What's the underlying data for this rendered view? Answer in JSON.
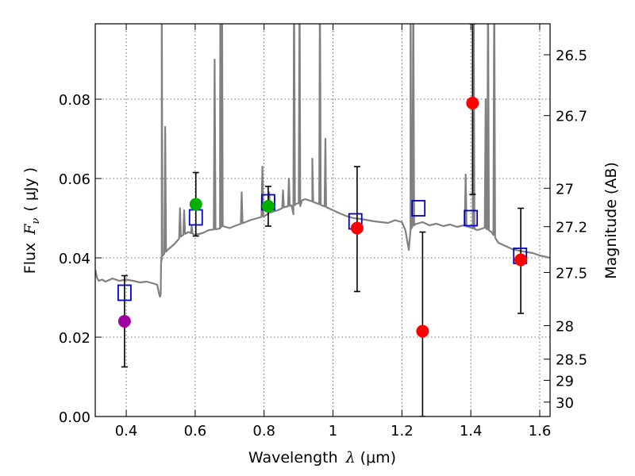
{
  "chart_data": {
    "type": "scatter",
    "xlabel": "Wavelength",
    "xlabel_symbol": "λ",
    "xlabel_unit": "(μm)",
    "ylabel": "Flux",
    "ylabel_symbol": "F",
    "ylabel_sub": "ν",
    "ylabel_unit": "( μJy )",
    "y2label": "Magnitude (AB)",
    "xlim": [
      0.31,
      1.63
    ],
    "ylim": [
      0.0,
      0.099
    ],
    "x_ticks": [
      0.4,
      0.6,
      0.8,
      1.0,
      1.2,
      1.4,
      1.6
    ],
    "x_tick_labels": [
      "0.4",
      "0.6",
      "0.8",
      "1",
      "1.2",
      "1.4",
      "1.6"
    ],
    "y_ticks": [
      0.0,
      0.02,
      0.04,
      0.06,
      0.08
    ],
    "y_tick_labels": [
      "0.00",
      "0.02",
      "0.04",
      "0.06",
      "0.08"
    ],
    "mag_ticks": [
      26.5,
      26.7,
      27.0,
      27.2,
      27.5,
      28.0,
      28.5,
      29.0,
      30.0
    ],
    "mag_tick_labels": [
      "26.5",
      "26.7",
      "27",
      "27.2",
      "27.5",
      "28",
      "28.5",
      "29",
      "30"
    ],
    "grid": true,
    "colors": {
      "template": "#808080",
      "model_box": "#0000cc",
      "error_bar": "#000000"
    },
    "observed": [
      {
        "x": 0.395,
        "y": 0.024,
        "err_lo": 0.0115,
        "err_hi": 0.0115,
        "color": "#a000a0"
      },
      {
        "x": 0.602,
        "y": 0.0535,
        "err_lo": 0.008,
        "err_hi": 0.008,
        "color": "#00b000"
      },
      {
        "x": 0.812,
        "y": 0.053,
        "err_lo": 0.005,
        "err_hi": 0.005,
        "color": "#00b000"
      },
      {
        "x": 1.07,
        "y": 0.0475,
        "err_lo": 0.016,
        "err_hi": 0.0155,
        "color": "#ff0000"
      },
      {
        "x": 1.26,
        "y": 0.0215,
        "err_lo": 0.0215,
        "err_hi": 0.025,
        "color": "#ff0000"
      },
      {
        "x": 1.405,
        "y": 0.079,
        "err_lo": 0.023,
        "err_hi": 0.02,
        "color": "#ff0000"
      },
      {
        "x": 1.545,
        "y": 0.0395,
        "err_lo": 0.0135,
        "err_hi": 0.013,
        "color": "#ff0000"
      }
    ],
    "model_photometry": [
      {
        "x": 0.395,
        "y": 0.0312
      },
      {
        "x": 0.602,
        "y": 0.0502
      },
      {
        "x": 0.812,
        "y": 0.054
      },
      {
        "x": 1.065,
        "y": 0.0492
      },
      {
        "x": 1.248,
        "y": 0.0525
      },
      {
        "x": 1.4,
        "y": 0.05
      },
      {
        "x": 1.543,
        "y": 0.0405
      }
    ],
    "template_spectrum": {
      "x": [
        0.31,
        0.315,
        0.32,
        0.33,
        0.34,
        0.36,
        0.38,
        0.4,
        0.42,
        0.44,
        0.46,
        0.48,
        0.49,
        0.495,
        0.498,
        0.5,
        0.501,
        0.502,
        0.503,
        0.505,
        0.51,
        0.52,
        0.54,
        0.56,
        0.58,
        0.6,
        0.62,
        0.64,
        0.66,
        0.672,
        0.676,
        0.68,
        0.7,
        0.72,
        0.74,
        0.76,
        0.78,
        0.8,
        0.82,
        0.84,
        0.86,
        0.88,
        0.885,
        0.89,
        0.9,
        0.905,
        0.91,
        0.92,
        0.94,
        0.96,
        0.98,
        1.0,
        1.02,
        1.04,
        1.06,
        1.08,
        1.1,
        1.12,
        1.14,
        1.16,
        1.18,
        1.2,
        1.21,
        1.22,
        1.225,
        1.23,
        1.24,
        1.26,
        1.28,
        1.3,
        1.32,
        1.34,
        1.36,
        1.38,
        1.4,
        1.42,
        1.44,
        1.46,
        1.48,
        1.5,
        1.52,
        1.54,
        1.56,
        1.58,
        1.6,
        1.62,
        1.63
      ],
      "y": [
        0.037,
        0.035,
        0.0342,
        0.0345,
        0.034,
        0.0348,
        0.0342,
        0.0345,
        0.0342,
        0.0338,
        0.034,
        0.0335,
        0.0332,
        0.031,
        0.0302,
        0.0308,
        0.0385,
        0.04,
        0.0395,
        0.0405,
        0.041,
        0.042,
        0.0435,
        0.0455,
        0.0465,
        0.0458,
        0.0462,
        0.047,
        0.0472,
        0.0474,
        0.0478,
        0.048,
        0.0475,
        0.0482,
        0.0488,
        0.0495,
        0.05,
        0.0505,
        0.0515,
        0.052,
        0.0528,
        0.0532,
        0.051,
        0.0535,
        0.0538,
        0.053,
        0.0545,
        0.0548,
        0.0542,
        0.0535,
        0.0528,
        0.052,
        0.0512,
        0.0505,
        0.05,
        0.0498,
        0.0495,
        0.0492,
        0.049,
        0.0488,
        0.0495,
        0.049,
        0.047,
        0.042,
        0.047,
        0.0478,
        0.0485,
        0.049,
        0.0482,
        0.0486,
        0.048,
        0.0484,
        0.0478,
        0.0482,
        0.0476,
        0.047,
        0.0476,
        0.0465,
        0.0438,
        0.043,
        0.0422,
        0.0418,
        0.0415,
        0.0412,
        0.0406,
        0.0402,
        0.04
      ]
    },
    "emission_lines": [
      {
        "x": 0.503,
        "peak": 0.11
      },
      {
        "x": 0.513,
        "peak": 0.073
      },
      {
        "x": 0.556,
        "peak": 0.0525
      },
      {
        "x": 0.568,
        "peak": 0.052
      },
      {
        "x": 0.59,
        "peak": 0.048
      },
      {
        "x": 0.6565,
        "peak": 0.09
      },
      {
        "x": 0.673,
        "peak": 0.11
      },
      {
        "x": 0.678,
        "peak": 0.11
      },
      {
        "x": 0.735,
        "peak": 0.0565
      },
      {
        "x": 0.795,
        "peak": 0.063
      },
      {
        "x": 0.815,
        "peak": 0.0565
      },
      {
        "x": 0.855,
        "peak": 0.057
      },
      {
        "x": 0.872,
        "peak": 0.06
      },
      {
        "x": 0.887,
        "peak": 0.11
      },
      {
        "x": 0.903,
        "peak": 0.11
      },
      {
        "x": 0.94,
        "peak": 0.065
      },
      {
        "x": 0.962,
        "peak": 0.11
      },
      {
        "x": 0.978,
        "peak": 0.07
      },
      {
        "x": 1.225,
        "peak": 0.11
      },
      {
        "x": 1.233,
        "peak": 0.11
      },
      {
        "x": 1.385,
        "peak": 0.061
      },
      {
        "x": 1.408,
        "peak": 0.11
      },
      {
        "x": 1.443,
        "peak": 0.08
      },
      {
        "x": 1.45,
        "peak": 0.11
      },
      {
        "x": 1.468,
        "peak": 0.11
      }
    ]
  }
}
